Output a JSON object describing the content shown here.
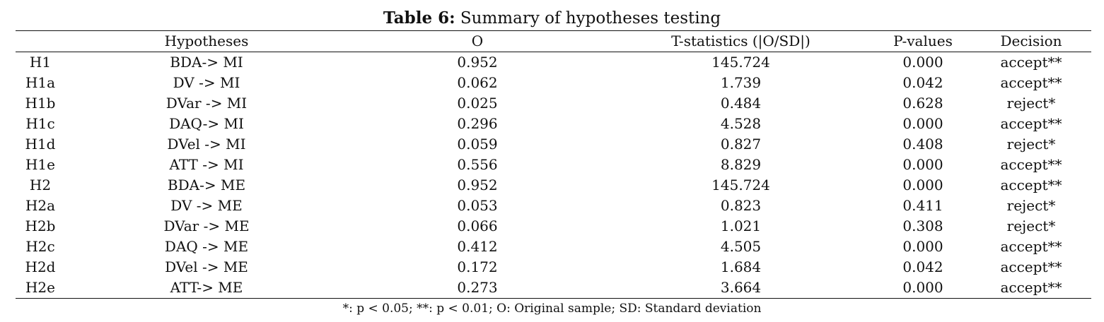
{
  "caption": {
    "label": "Table 6:",
    "text": " Summary of hypotheses testing"
  },
  "table": {
    "headers": [
      "",
      "Hypotheses",
      "O",
      "T-statistics (|O/SD|)",
      "P-values",
      "Decision"
    ],
    "rows": [
      [
        "H1",
        "BDA-> MI",
        "0.952",
        "145.724",
        "0.000",
        "accept**"
      ],
      [
        "H1a",
        "DV -> MI",
        "0.062",
        "1.739",
        "0.042",
        "accept**"
      ],
      [
        "H1b",
        "DVar -> MI",
        "0.025",
        "0.484",
        "0.628",
        "reject*"
      ],
      [
        "H1c",
        "DAQ-> MI",
        "0.296",
        "4.528",
        "0.000",
        "accept**"
      ],
      [
        "H1d",
        "DVel -> MI",
        "0.059",
        "0.827",
        "0.408",
        "reject*"
      ],
      [
        "H1e",
        "ATT -> MI",
        "0.556",
        "8.829",
        "0.000",
        "accept**"
      ],
      [
        "H2",
        "BDA-> ME",
        "0.952",
        "145.724",
        "0.000",
        "accept**"
      ],
      [
        "H2a",
        "DV -> ME",
        "0.053",
        "0.823",
        "0.411",
        "reject*"
      ],
      [
        "H2b",
        "DVar -> ME",
        "0.066",
        "1.021",
        "0.308",
        "reject*"
      ],
      [
        "H2c",
        "DAQ -> ME",
        "0.412",
        "4.505",
        "0.000",
        "accept**"
      ],
      [
        "H2d",
        "DVel -> ME",
        "0.172",
        "1.684",
        "0.042",
        "accept**"
      ],
      [
        "H2e",
        "ATT-> ME",
        "0.273",
        "3.664",
        "0.000",
        "accept**"
      ]
    ]
  },
  "footnote": "*: p < 0.05; **: p < 0.01; O: Original sample; SD: Standard deviation"
}
